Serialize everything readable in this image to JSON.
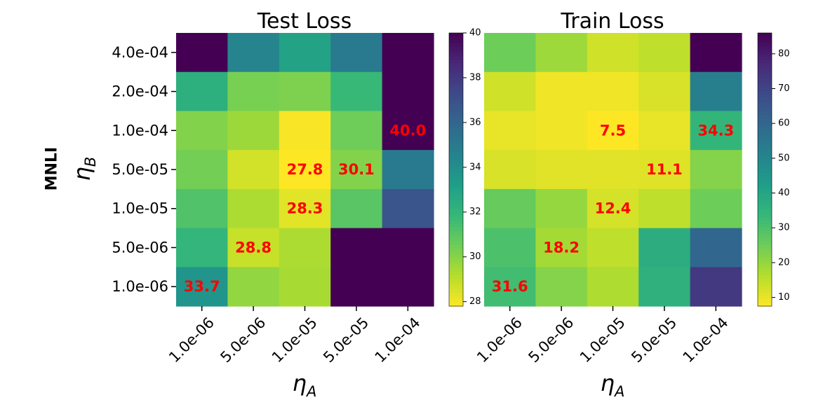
{
  "figure": {
    "row_label": "MNLI",
    "ylabel_base": "η",
    "ylabel_sub": "B",
    "xlabel_base": "η",
    "xlabel_sub": "A"
  },
  "chart_data": [
    {
      "type": "heatmap",
      "title": "Test Loss",
      "xlabel": "η_A",
      "ylabel": "η_B",
      "x_categories": [
        "1.0e-06",
        "5.0e-06",
        "1.0e-05",
        "5.0e-05",
        "1.0e-04"
      ],
      "y_categories": [
        "4.0e-04",
        "2.0e-04",
        "1.0e-04",
        "5.0e-05",
        "1.0e-05",
        "5.0e-06",
        "1.0e-06"
      ],
      "values": [
        [
          40.0,
          34.5,
          33.0,
          35.0,
          40.0
        ],
        [
          32.3,
          30.3,
          30.2,
          31.8,
          40.0
        ],
        [
          30.1,
          29.6,
          27.9,
          30.5,
          40.0
        ],
        [
          30.4,
          28.6,
          27.8,
          30.1,
          35.0
        ],
        [
          31.2,
          29.3,
          28.3,
          31.0,
          36.8
        ],
        [
          32.0,
          28.8,
          29.3,
          40.0,
          40.0
        ],
        [
          33.7,
          29.8,
          29.4,
          40.0,
          40.0
        ]
      ],
      "annotations": [
        {
          "row": 2,
          "col": 4,
          "label": "40.0"
        },
        {
          "row": 3,
          "col": 2,
          "label": "27.8"
        },
        {
          "row": 3,
          "col": 3,
          "label": "30.1"
        },
        {
          "row": 4,
          "col": 2,
          "label": "28.3"
        },
        {
          "row": 5,
          "col": 1,
          "label": "28.8"
        },
        {
          "row": 6,
          "col": 0,
          "label": "33.7"
        }
      ],
      "colorbar": {
        "vmin": 27.8,
        "vmax": 40.0,
        "ticks": [
          28,
          30,
          32,
          34,
          36,
          38,
          40
        ],
        "tick_labels": [
          "28",
          "30",
          "32",
          "34",
          "36",
          "38",
          "40"
        ]
      },
      "colormap": "viridis_r"
    },
    {
      "type": "heatmap",
      "title": "Train Loss",
      "xlabel": "η_A",
      "ylabel": "",
      "x_categories": [
        "1.0e-06",
        "5.0e-06",
        "1.0e-05",
        "5.0e-05",
        "1.0e-04"
      ],
      "y_categories": [
        "4.0e-04",
        "2.0e-04",
        "1.0e-04",
        "5.0e-05",
        "1.0e-05",
        "5.0e-06",
        "1.0e-06"
      ],
      "values": [
        [
          25.0,
          19.0,
          13.0,
          15.0,
          86.0
        ],
        [
          13.0,
          9.0,
          9.0,
          12.0,
          52.0
        ],
        [
          10.0,
          9.0,
          7.5,
          10.0,
          34.3
        ],
        [
          12.0,
          11.0,
          11.0,
          11.1,
          22.0
        ],
        [
          26.0,
          20.0,
          12.4,
          15.0,
          25.0
        ],
        [
          30.0,
          18.2,
          15.0,
          37.0,
          60.0
        ],
        [
          31.6,
          22.0,
          17.0,
          36.0,
          73.0
        ]
      ],
      "annotations": [
        {
          "row": 2,
          "col": 2,
          "label": "7.5"
        },
        {
          "row": 2,
          "col": 4,
          "label": "34.3"
        },
        {
          "row": 3,
          "col": 3,
          "label": "11.1"
        },
        {
          "row": 4,
          "col": 2,
          "label": "12.4"
        },
        {
          "row": 5,
          "col": 1,
          "label": "18.2"
        },
        {
          "row": 6,
          "col": 0,
          "label": "31.6"
        }
      ],
      "colorbar": {
        "vmin": 7.5,
        "vmax": 86.0,
        "ticks": [
          10,
          20,
          30,
          40,
          50,
          60,
          70,
          80
        ],
        "tick_labels": [
          "10",
          "20",
          "30",
          "40",
          "50",
          "60",
          "70",
          "80"
        ]
      },
      "colormap": "viridis_r"
    }
  ],
  "colors": {
    "annotation": "#ff0000",
    "axis": "#000000",
    "background": "#ffffff"
  }
}
